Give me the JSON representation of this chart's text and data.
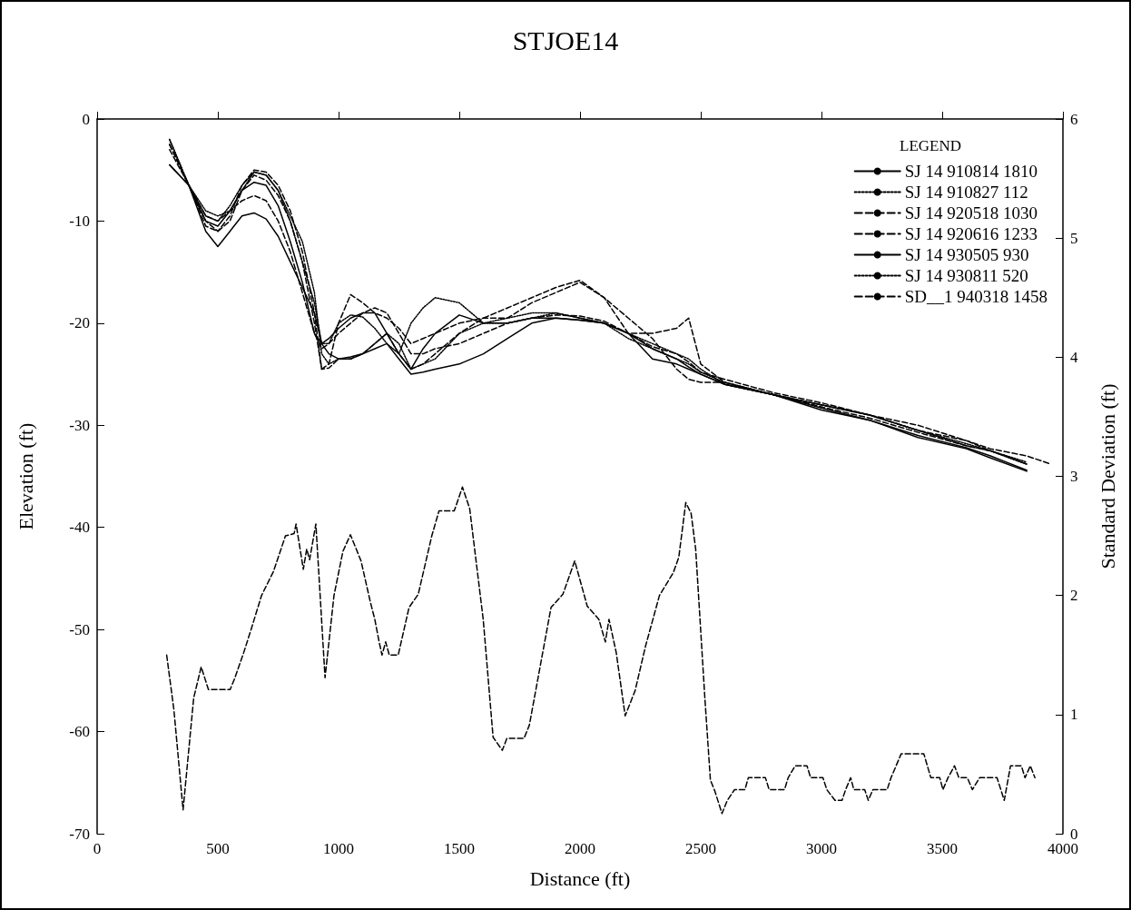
{
  "chart_data": {
    "type": "line",
    "title": "STJOE14",
    "xlabel": "Distance (ft)",
    "ylabel": "Elevation (ft)",
    "y2label": "Standard Deviation (ft)",
    "legend_title": "LEGEND",
    "legend": "top right",
    "grid": false,
    "marker": "none",
    "xlim": [
      0,
      4000
    ],
    "xticks": [
      0,
      500,
      1000,
      1500,
      2000,
      2500,
      3000,
      3500,
      4000
    ],
    "ylim": [
      -70,
      0
    ],
    "yticks": [
      -70,
      -60,
      -50,
      -40,
      -30,
      -20,
      -10,
      0
    ],
    "y2lim": [
      0,
      6
    ],
    "y2ticks": [
      0,
      1,
      2,
      3,
      4,
      5,
      6
    ],
    "x": [
      300,
      380,
      450,
      500,
      550,
      600,
      650,
      700,
      750,
      800,
      850,
      900,
      930,
      960,
      1000,
      1050,
      1100,
      1150,
      1200,
      1250,
      1300,
      1350,
      1400,
      1500,
      1600,
      1700,
      1800,
      1900,
      2000,
      2100,
      2200,
      2300,
      2400,
      2450,
      2500,
      2600,
      2800,
      3000,
      3200,
      3400,
      3600,
      3700,
      3850
    ],
    "series": [
      {
        "name": "SJ 14 910814 1810",
        "color": "#000000",
        "line_style": "solid",
        "values": [
          -4.5,
          -6.5,
          -11,
          -12.5,
          -11,
          -9.5,
          -9.2,
          -9.8,
          -11.5,
          -14,
          -16.5,
          -19,
          -22,
          -23,
          -23.5,
          -23.3,
          -23,
          -22.5,
          -22,
          -23.5,
          -25,
          -24.8,
          -24.5,
          -24,
          -23,
          -21.5,
          -20,
          -19.5,
          -19.7,
          -20,
          -21,
          -23.5,
          -24,
          -24.5,
          -25,
          -26,
          -27,
          -28.3,
          -29.5,
          -31,
          -32.2,
          -33,
          -34.4
        ]
      },
      {
        "name": "SJ 14 910827 112",
        "color": "#000000",
        "line_style": "dotted",
        "values": [
          -2,
          -6.5,
          -9,
          -9.5,
          -9,
          -7,
          -5.2,
          -5.5,
          -7,
          -10,
          -14,
          -18,
          -22,
          -22,
          -20,
          -19.2,
          -19.4,
          -20.5,
          -22,
          -23,
          -20,
          -18.5,
          -17.5,
          -18,
          -20,
          -20,
          -19.5,
          -19,
          -19.5,
          -20,
          -21,
          -22,
          -23,
          -23.5,
          -24.5,
          -26,
          -27,
          -28,
          -29,
          -30.5,
          -32,
          -32.5,
          -33.8
        ]
      },
      {
        "name": "SJ 14 920518 1030",
        "color": "#000000",
        "line_style": "dashed",
        "values": [
          -2.5,
          -6.5,
          -10,
          -11,
          -9.5,
          -6.5,
          -5,
          -5.2,
          -6.5,
          -9,
          -13,
          -19,
          -24.5,
          -24,
          -20,
          -17.2,
          -18,
          -19,
          -19.5,
          -20.5,
          -22,
          -21.5,
          -21,
          -20,
          -19.5,
          -19.5,
          -18,
          -17,
          -16,
          -17.5,
          -19.5,
          -21.5,
          -24.5,
          -25.5,
          -25.8,
          -25.8,
          -27,
          -28,
          -29,
          -30.5,
          -31.5,
          -32.5,
          -33.8
        ]
      },
      {
        "name": "SJ 14 920616 1233",
        "color": "#000000",
        "line_style": "dashed",
        "values": [
          -3,
          -6.5,
          -10.5,
          -11,
          -10,
          -7,
          -5.5,
          -6,
          -7.5,
          -10,
          -14,
          -20,
          -24.5,
          -24.4,
          -23.5,
          -23.5,
          -23,
          -22,
          -21,
          -23,
          -24.5,
          -24,
          -23,
          -21,
          -19.5,
          -18.5,
          -17.5,
          -16.5,
          -15.8,
          -17.5,
          -21,
          -21,
          -20.5,
          -19.5,
          -24,
          -25.8,
          -27,
          -28.2,
          -29.3,
          -30.7,
          -32,
          -32.5,
          -33.8
        ]
      },
      {
        "name": "SJ 14 930505 930",
        "color": "#000000",
        "line_style": "solid",
        "values": [
          -4.5,
          -6.5,
          -10,
          -10.5,
          -9,
          -7,
          -6.2,
          -6.5,
          -8.5,
          -12,
          -16,
          -21,
          -22,
          -21.5,
          -20.5,
          -19.5,
          -19,
          -19,
          -21,
          -23,
          -24.5,
          -22.5,
          -21,
          -19.2,
          -20,
          -20,
          -19.5,
          -19.5,
          -19.7,
          -20,
          -21,
          -22.5,
          -23.5,
          -24.3,
          -25,
          -26,
          -27,
          -28.5,
          -29.5,
          -31.2,
          -32.3,
          -33.2,
          -34.5
        ]
      },
      {
        "name": "SJ 14 930811 520",
        "color": "#000000",
        "line_style": "dotted",
        "values": [
          -2,
          -6.5,
          -9.5,
          -10,
          -8.5,
          -6.5,
          -5.2,
          -5.5,
          -7,
          -9.5,
          -12,
          -17,
          -23,
          -24,
          -23.5,
          -23.5,
          -23,
          -22,
          -21,
          -22,
          -24.5,
          -24,
          -23.5,
          -21,
          -20,
          -19.5,
          -19,
          -19,
          -19.5,
          -20,
          -21.5,
          -22.5,
          -23.5,
          -24,
          -24.8,
          -25.8,
          -27,
          -28,
          -29,
          -30.5,
          -31.8,
          -32.5,
          -33.6
        ]
      },
      {
        "name": "SD__1 940318 1458",
        "color": "#000000",
        "line_style": "dashed",
        "x": [
          300,
          380,
          450,
          500,
          550,
          600,
          650,
          700,
          750,
          800,
          850,
          900,
          930,
          960,
          1000,
          1050,
          1100,
          1150,
          1200,
          1250,
          1300,
          1350,
          1400,
          1500,
          1600,
          1700,
          1800,
          1900,
          2000,
          2100,
          2200,
          2300,
          2400,
          2450,
          2500,
          2600,
          2800,
          3000,
          3200,
          3400,
          3600,
          3700,
          3850,
          3950
        ],
        "values": [
          -2.5,
          -6.5,
          -9.5,
          -10,
          -9,
          -8,
          -7.5,
          -8,
          -10,
          -13,
          -17,
          -21,
          -22.5,
          -22,
          -21,
          -20,
          -19,
          -18.5,
          -19,
          -21,
          -23,
          -23,
          -22.5,
          -22,
          -21,
          -20,
          -19.5,
          -19.2,
          -19.3,
          -19.8,
          -21,
          -22.3,
          -23,
          -23.8,
          -24.8,
          -25.5,
          -26.8,
          -27.8,
          -29,
          -30,
          -31.5,
          -32.3,
          -33,
          -33.8
        ]
      },
      {
        "color": "#000000",
        "line_style": "dashed",
        "axis": "y2",
        "x": [
          288,
          318,
          356,
          400,
          431,
          461,
          551,
          569,
          607,
          637,
          681,
          730,
          780,
          816,
          824,
          854,
          868,
          880,
          906,
          944,
          981,
          1018,
          1049,
          1093,
          1131,
          1150,
          1168,
          1180,
          1195,
          1210,
          1247,
          1292,
          1330,
          1386,
          1416,
          1479,
          1513,
          1543,
          1599,
          1640,
          1678,
          1697,
          1768,
          1790,
          1880,
          1929,
          1978,
          2030,
          2078,
          2105,
          2120,
          2150,
          2187,
          2228,
          2272,
          2329,
          2386,
          2409,
          2438,
          2460,
          2479,
          2517,
          2540,
          2558,
          2588,
          2610,
          2640,
          2683,
          2697,
          2768,
          2783,
          2847,
          2862,
          2891,
          2940,
          2955,
          3006,
          3022,
          3056,
          3085,
          3100,
          3121,
          3134,
          3179,
          3194,
          3213,
          3272,
          3288,
          3330,
          3424,
          3453,
          3490,
          3503,
          3524,
          3551,
          3569,
          3604,
          3625,
          3655,
          3727,
          3757,
          3783,
          3828,
          3843,
          3865,
          3884
        ],
        "values": [
          1.5,
          1.04,
          0.2,
          1.14,
          1.4,
          1.21,
          1.21,
          1.3,
          1.52,
          1.71,
          2.0,
          2.2,
          2.5,
          2.52,
          2.6,
          2.22,
          2.39,
          2.3,
          2.6,
          1.31,
          2.0,
          2.37,
          2.51,
          2.29,
          1.95,
          1.8,
          1.61,
          1.5,
          1.61,
          1.5,
          1.5,
          1.9,
          2.01,
          2.5,
          2.71,
          2.71,
          2.91,
          2.73,
          1.8,
          0.81,
          0.7,
          0.8,
          0.8,
          0.91,
          1.9,
          2.01,
          2.29,
          1.91,
          1.8,
          1.61,
          1.8,
          1.52,
          0.99,
          1.2,
          1.58,
          2.0,
          2.19,
          2.32,
          2.78,
          2.69,
          2.39,
          1.14,
          0.45,
          0.36,
          0.17,
          0.28,
          0.37,
          0.37,
          0.47,
          0.47,
          0.37,
          0.37,
          0.47,
          0.57,
          0.57,
          0.47,
          0.47,
          0.37,
          0.28,
          0.28,
          0.37,
          0.47,
          0.37,
          0.37,
          0.28,
          0.37,
          0.37,
          0.47,
          0.67,
          0.67,
          0.47,
          0.47,
          0.37,
          0.47,
          0.57,
          0.47,
          0.47,
          0.37,
          0.47,
          0.47,
          0.28,
          0.57,
          0.57,
          0.47,
          0.57,
          0.47
        ]
      }
    ]
  }
}
